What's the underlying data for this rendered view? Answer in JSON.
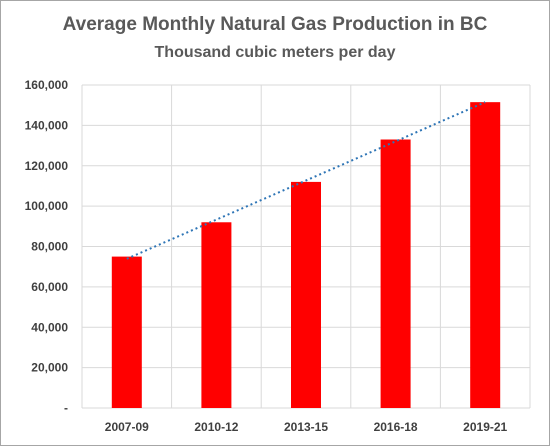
{
  "chart_data": {
    "type": "bar",
    "title": "Average Monthly Natural Gas Production in BC",
    "subtitle": "Thousand cubic meters per day",
    "categories": [
      "2007-09",
      "2010-12",
      "2013-15",
      "2016-18",
      "2019-21"
    ],
    "values": [
      75000,
      92000,
      112000,
      133000,
      151500
    ],
    "ylim": [
      0,
      160000
    ],
    "yticks": [
      0,
      20000,
      40000,
      60000,
      80000,
      100000,
      120000,
      140000,
      160000
    ],
    "ytick_labels": [
      "-",
      "20,000",
      "40,000",
      "60,000",
      "80,000",
      "100,000",
      "120,000",
      "140,000",
      "160,000"
    ],
    "trendline": {
      "type": "linear",
      "style": "dotted",
      "color": "#2e75b6"
    },
    "bar_color": "#ff0000",
    "grid": true,
    "legend": "none"
  }
}
